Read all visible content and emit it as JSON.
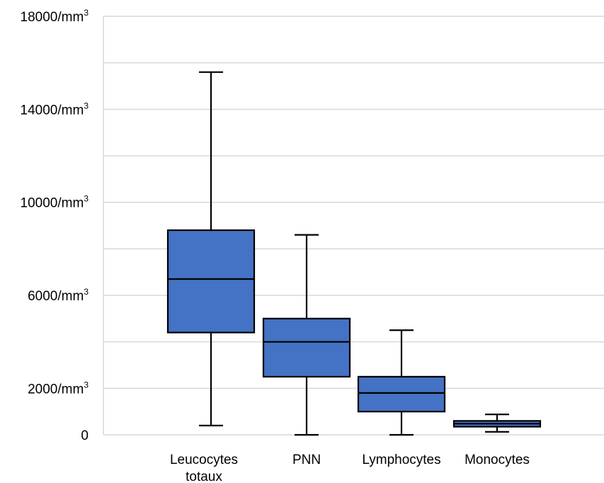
{
  "chart_data": {
    "type": "boxplot",
    "ylim": [
      0,
      18000
    ],
    "y_ticks": [
      {
        "value": 0,
        "text": "0",
        "sup": ""
      },
      {
        "value": 2000,
        "text": "2000/mm",
        "sup": "3"
      },
      {
        "value": 6000,
        "text": "6000/mm",
        "sup": "3"
      },
      {
        "value": 10000,
        "text": "10000/mm",
        "sup": "3"
      },
      {
        "value": 14000,
        "text": "14000/mm",
        "sup": "3"
      },
      {
        "value": 18000,
        "text": "18000/mm",
        "sup": "3"
      }
    ],
    "gridlines": [
      0,
      2000,
      4000,
      6000,
      8000,
      10000,
      12000,
      14000,
      16000,
      18000
    ],
    "grid": true,
    "box_color": "#4472c4",
    "categories": [
      "Leucocytes totaux",
      "PNN",
      "Lymphocytes",
      "Monocytes"
    ],
    "category_lines": [
      [
        "Leucocytes",
        "totaux"
      ],
      [
        "PNN"
      ],
      [
        "Lymphocytes"
      ],
      [
        "Monocytes"
      ]
    ],
    "boxes": [
      {
        "min": 400,
        "q1": 4400,
        "median": 6700,
        "q3": 8800,
        "max": 15600
      },
      {
        "min": 0,
        "q1": 2500,
        "median": 4000,
        "q3": 5000,
        "max": 8600
      },
      {
        "min": 0,
        "q1": 1000,
        "median": 1800,
        "q3": 2500,
        "max": 4500
      },
      {
        "min": 130,
        "q1": 350,
        "median": 480,
        "q3": 600,
        "max": 880
      }
    ]
  }
}
